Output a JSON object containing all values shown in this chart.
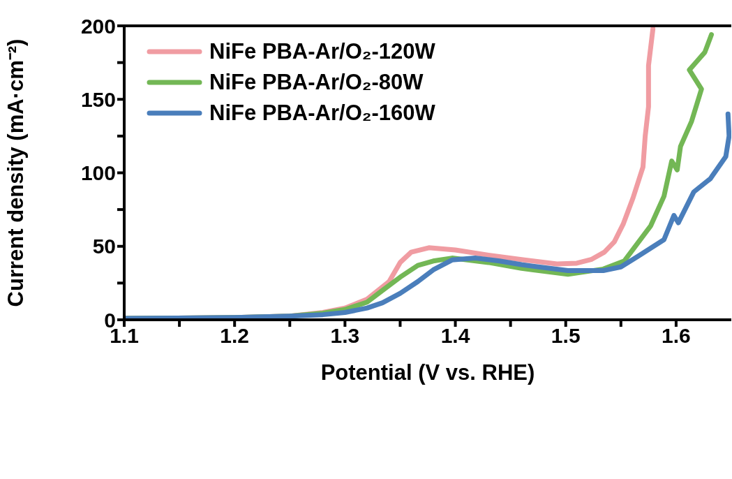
{
  "chart_data": {
    "type": "line",
    "xlabel": "Potential (V vs. RHE)",
    "ylabel": "Current density (mA·cm⁻²)",
    "xlim": [
      1.1,
      1.65
    ],
    "ylim": [
      0,
      200
    ],
    "xticks": [
      1.1,
      {
        "value": 1.15,
        "label": null
      },
      1.2,
      {
        "value": 1.25,
        "label": null
      },
      1.3,
      {
        "value": 1.35,
        "label": null
      },
      1.4,
      {
        "value": 1.45,
        "label": null
      },
      1.5,
      {
        "value": 1.55,
        "label": null
      },
      1.6
    ],
    "yticks": [
      0,
      {
        "value": 25,
        "label": null
      },
      50,
      {
        "value": 75,
        "label": null
      },
      100,
      {
        "value": 125,
        "label": null
      },
      150,
      {
        "value": 175,
        "label": null
      },
      200
    ],
    "legend": "top left",
    "marker": "none",
    "line_style": "solid",
    "series": [
      {
        "name": "NiFe PBA-Ar/O₂-120W",
        "color": "#f09ca2",
        "x": [
          1.1,
          1.2,
          1.25,
          1.28,
          1.3,
          1.32,
          1.34,
          1.35,
          1.36,
          1.376,
          1.4,
          1.43,
          1.46,
          1.492,
          1.51,
          1.523,
          1.535,
          1.544,
          1.552,
          1.561,
          1.57,
          1.572,
          1.575,
          1.575,
          1.579
        ],
        "values": [
          1,
          1.5,
          2.5,
          5,
          8,
          14,
          26,
          39,
          46,
          49,
          47.5,
          44,
          41,
          38,
          38.5,
          41,
          46,
          53,
          65,
          83,
          104,
          125,
          145,
          173,
          198
        ]
      },
      {
        "name": "NiFe PBA-Ar/O₂-80W",
        "color": "#73b755",
        "x": [
          1.1,
          1.2,
          1.25,
          1.28,
          1.3,
          1.32,
          1.334,
          1.35,
          1.366,
          1.38,
          1.397,
          1.43,
          1.46,
          1.502,
          1.534,
          1.553,
          1.565,
          1.577,
          1.589,
          1.596,
          1.601,
          1.604,
          1.614,
          1.623,
          1.612,
          1.619,
          1.626,
          1.632
        ],
        "values": [
          1,
          1.5,
          2.5,
          4.5,
          7,
          12,
          20,
          29,
          37,
          40,
          42,
          39,
          35,
          31,
          34.5,
          40,
          52,
          64,
          84,
          108,
          102,
          118,
          135,
          157,
          170,
          176,
          182,
          194
        ]
      },
      {
        "name": "NiFe PBA-Ar/O₂-160W",
        "color": "#4a7ebb",
        "x": [
          1.1,
          1.2,
          1.25,
          1.28,
          1.3,
          1.32,
          1.334,
          1.35,
          1.366,
          1.38,
          1.397,
          1.418,
          1.44,
          1.46,
          1.502,
          1.534,
          1.55,
          1.565,
          1.589,
          1.598,
          1.602,
          1.616,
          1.631,
          1.645,
          1.648,
          1.647
        ],
        "values": [
          1,
          1.5,
          2.5,
          3.5,
          5,
          8,
          11.6,
          18,
          26,
          34,
          40.7,
          42,
          40,
          37.5,
          33.5,
          33.5,
          36,
          43,
          54.5,
          71,
          66,
          87,
          96,
          111,
          125,
          140
        ]
      }
    ]
  }
}
